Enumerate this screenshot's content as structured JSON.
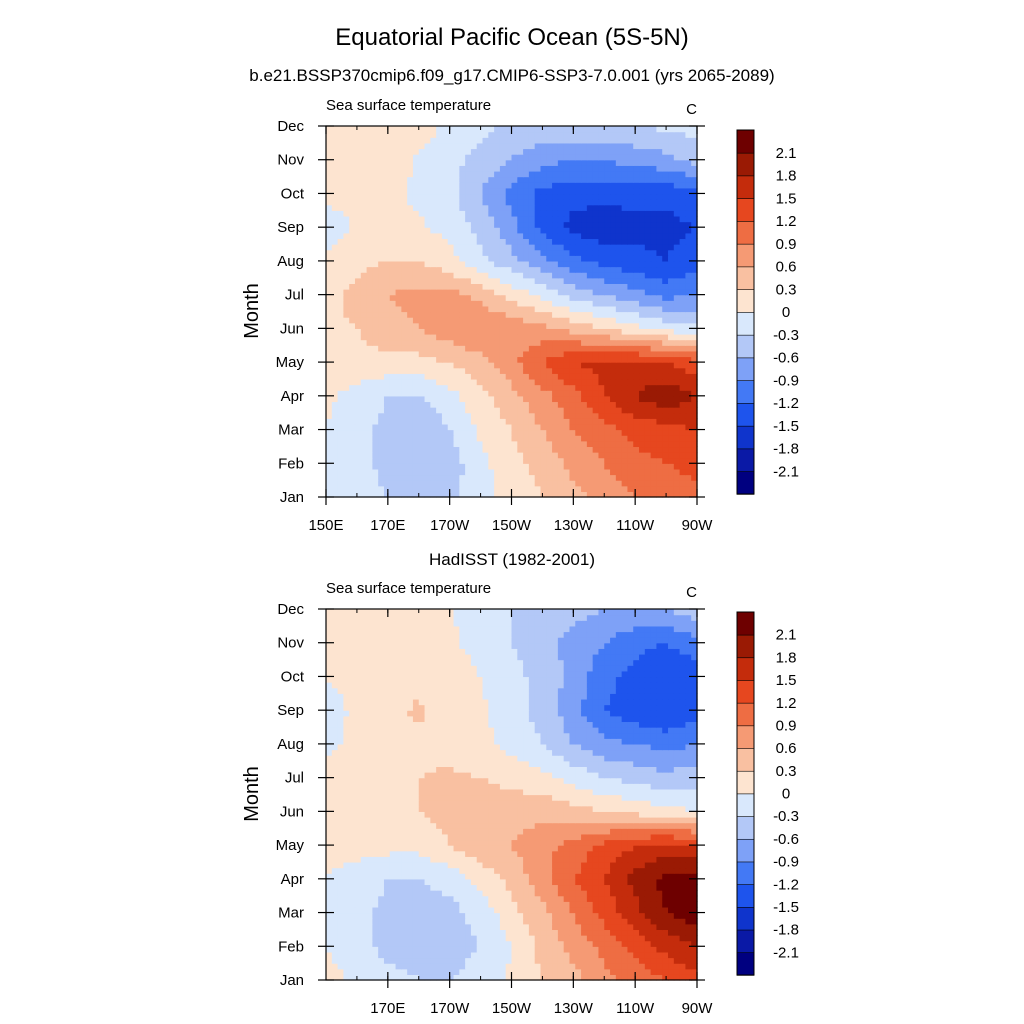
{
  "figure": {
    "title": "Equatorial Pacific Ocean (5S-5N)"
  },
  "colorbar": {
    "colors": [
      "#000080",
      "#0a19a6",
      "#0f34cc",
      "#1e54ed",
      "#4379f5",
      "#7ea1f7",
      "#b3c8f7",
      "#d9e8fc",
      "#fde4d0",
      "#f9c0a1",
      "#f59a74",
      "#ee6d43",
      "#e6471f",
      "#c42c0c",
      "#9a1a04",
      "#6e0000"
    ],
    "levels": [
      "-2.1",
      "-1.8",
      "-1.5",
      "-1.2",
      "-0.9",
      "-0.6",
      "-0.3",
      "0",
      "0.3",
      "0.6",
      "0.9",
      "1.2",
      "1.5",
      "1.8",
      "2.1"
    ]
  },
  "chart_data": [
    {
      "type": "heatmap",
      "title": "b.e21.BSSP370cmip6.f09_g17.CMIP6-SSP3-7.0.001 (yrs 2065-2089)",
      "subtitle_left": "Sea surface temperature",
      "subtitle_right": "C",
      "ylabel": "Month",
      "xlabel": "",
      "x_ticks": [
        "150E",
        "170E",
        "170W",
        "150W",
        "130W",
        "110W",
        "90W"
      ],
      "x_tick_lon": [
        150,
        170,
        190,
        210,
        230,
        250,
        270
      ],
      "xlim": [
        150,
        270
      ],
      "y_ticks": [
        "Jan",
        "Feb",
        "Mar",
        "Apr",
        "May",
        "Jun",
        "Jul",
        "Aug",
        "Sep",
        "Oct",
        "Nov",
        "Dec"
      ],
      "lon": [
        150,
        160,
        170,
        180,
        190,
        200,
        210,
        220,
        230,
        240,
        250,
        260,
        270
      ],
      "z": [
        [
          0.0,
          -0.15,
          -0.3,
          -0.45,
          -0.4,
          -0.1,
          0.1,
          0.3,
          0.5,
          0.7,
          0.9,
          1.0,
          1.1
        ],
        [
          -0.05,
          -0.2,
          -0.4,
          -0.5,
          -0.45,
          -0.1,
          0.2,
          0.4,
          0.7,
          0.9,
          1.1,
          1.2,
          1.3
        ],
        [
          0.0,
          -0.2,
          -0.4,
          -0.55,
          -0.3,
          0.05,
          0.3,
          0.6,
          0.9,
          1.1,
          1.3,
          1.4,
          1.5
        ],
        [
          0.05,
          -0.1,
          -0.3,
          -0.35,
          -0.1,
          0.2,
          0.5,
          0.8,
          1.1,
          1.5,
          1.8,
          2.0,
          1.8
        ],
        [
          0.15,
          0.2,
          0.2,
          0.2,
          0.3,
          0.5,
          0.8,
          1.2,
          1.5,
          1.6,
          1.6,
          1.5,
          1.3
        ],
        [
          0.25,
          0.3,
          0.5,
          0.6,
          0.8,
          0.9,
          0.8,
          0.7,
          0.5,
          0.3,
          0.1,
          -0.1,
          -0.2
        ],
        [
          0.2,
          0.4,
          0.6,
          0.7,
          0.7,
          0.5,
          0.2,
          -0.1,
          -0.4,
          -0.6,
          -0.8,
          -1.0,
          -0.9
        ],
        [
          0.1,
          0.2,
          0.3,
          0.3,
          0.1,
          -0.2,
          -0.5,
          -0.8,
          -1.1,
          -1.3,
          -1.4,
          -1.5,
          -1.3
        ],
        [
          -0.2,
          0.05,
          0.1,
          0.05,
          -0.1,
          -0.4,
          -0.8,
          -1.3,
          -1.6,
          -1.7,
          -1.6,
          -1.6,
          -1.5
        ],
        [
          0.1,
          0.1,
          0.05,
          -0.05,
          -0.2,
          -0.6,
          -1.0,
          -1.3,
          -1.4,
          -1.4,
          -1.4,
          -1.4,
          -1.3
        ],
        [
          0.15,
          0.2,
          0.2,
          -0.05,
          -0.2,
          -0.4,
          -0.6,
          -0.8,
          -0.9,
          -0.9,
          -0.8,
          -0.7,
          -0.5
        ],
        [
          0.1,
          0.15,
          0.2,
          0.2,
          -0.1,
          -0.2,
          -0.4,
          -0.4,
          -0.35,
          -0.3,
          -0.3,
          -0.25,
          -0.2
        ]
      ]
    },
    {
      "type": "heatmap",
      "title": "HadISST (1982-2001)",
      "subtitle_left": "Sea surface temperature",
      "subtitle_right": "C",
      "ylabel": "Month",
      "xlabel": "",
      "x_ticks": [
        "170E",
        "170W",
        "150W",
        "130W",
        "110W",
        "90W"
      ],
      "x_tick_lon": [
        170,
        190,
        210,
        230,
        250,
        270
      ],
      "xlim": [
        150,
        270
      ],
      "y_ticks": [
        "Jan",
        "Feb",
        "Mar",
        "Apr",
        "May",
        "Jun",
        "Jul",
        "Aug",
        "Sep",
        "Oct",
        "Nov",
        "Dec"
      ],
      "lon": [
        150,
        160,
        170,
        180,
        190,
        200,
        210,
        220,
        230,
        240,
        250,
        260,
        270
      ],
      "z": [
        [
          0.1,
          -0.05,
          -0.2,
          -0.3,
          -0.3,
          -0.2,
          0.05,
          0.3,
          0.5,
          0.8,
          1.0,
          1.2,
          1.4
        ],
        [
          0.0,
          -0.15,
          -0.4,
          -0.4,
          -0.4,
          -0.3,
          0.0,
          0.4,
          0.7,
          1.0,
          1.3,
          1.6,
          1.8
        ],
        [
          -0.05,
          -0.2,
          -0.4,
          -0.45,
          -0.4,
          -0.2,
          0.2,
          0.5,
          0.9,
          1.3,
          1.7,
          2.1,
          2.3
        ],
        [
          0.0,
          -0.1,
          -0.3,
          -0.3,
          -0.2,
          0.1,
          0.4,
          0.8,
          1.2,
          1.5,
          1.9,
          2.2,
          2.3
        ],
        [
          0.05,
          0.1,
          0.1,
          0.1,
          0.3,
          0.5,
          0.6,
          0.8,
          1.0,
          1.3,
          1.5,
          1.6,
          1.5
        ],
        [
          0.15,
          0.2,
          0.2,
          0.3,
          0.4,
          0.5,
          0.5,
          0.5,
          0.4,
          0.3,
          0.2,
          0.1,
          0.0
        ],
        [
          0.2,
          0.25,
          0.25,
          0.3,
          0.35,
          0.3,
          0.2,
          0.1,
          -0.1,
          -0.3,
          -0.4,
          -0.5,
          -0.4
        ],
        [
          -0.1,
          0.1,
          0.2,
          0.25,
          0.2,
          0.1,
          -0.1,
          -0.3,
          -0.6,
          -0.8,
          -0.9,
          -1.0,
          -0.9
        ],
        [
          -0.2,
          0.1,
          0.2,
          0.35,
          0.15,
          0.05,
          -0.2,
          -0.4,
          -0.8,
          -1.2,
          -1.4,
          -1.5,
          -1.3
        ],
        [
          0.05,
          0.1,
          0.2,
          0.2,
          0.15,
          0.0,
          -0.2,
          -0.4,
          -0.7,
          -1.1,
          -1.3,
          -1.5,
          -1.4
        ],
        [
          0.15,
          0.15,
          0.15,
          0.1,
          0.05,
          -0.1,
          -0.3,
          -0.5,
          -0.7,
          -0.9,
          -1.1,
          -1.2,
          -1.0
        ],
        [
          0.1,
          0.1,
          0.1,
          0.05,
          0.0,
          -0.1,
          -0.3,
          -0.4,
          -0.5,
          -0.6,
          -0.65,
          -0.6,
          -0.4
        ]
      ]
    }
  ]
}
